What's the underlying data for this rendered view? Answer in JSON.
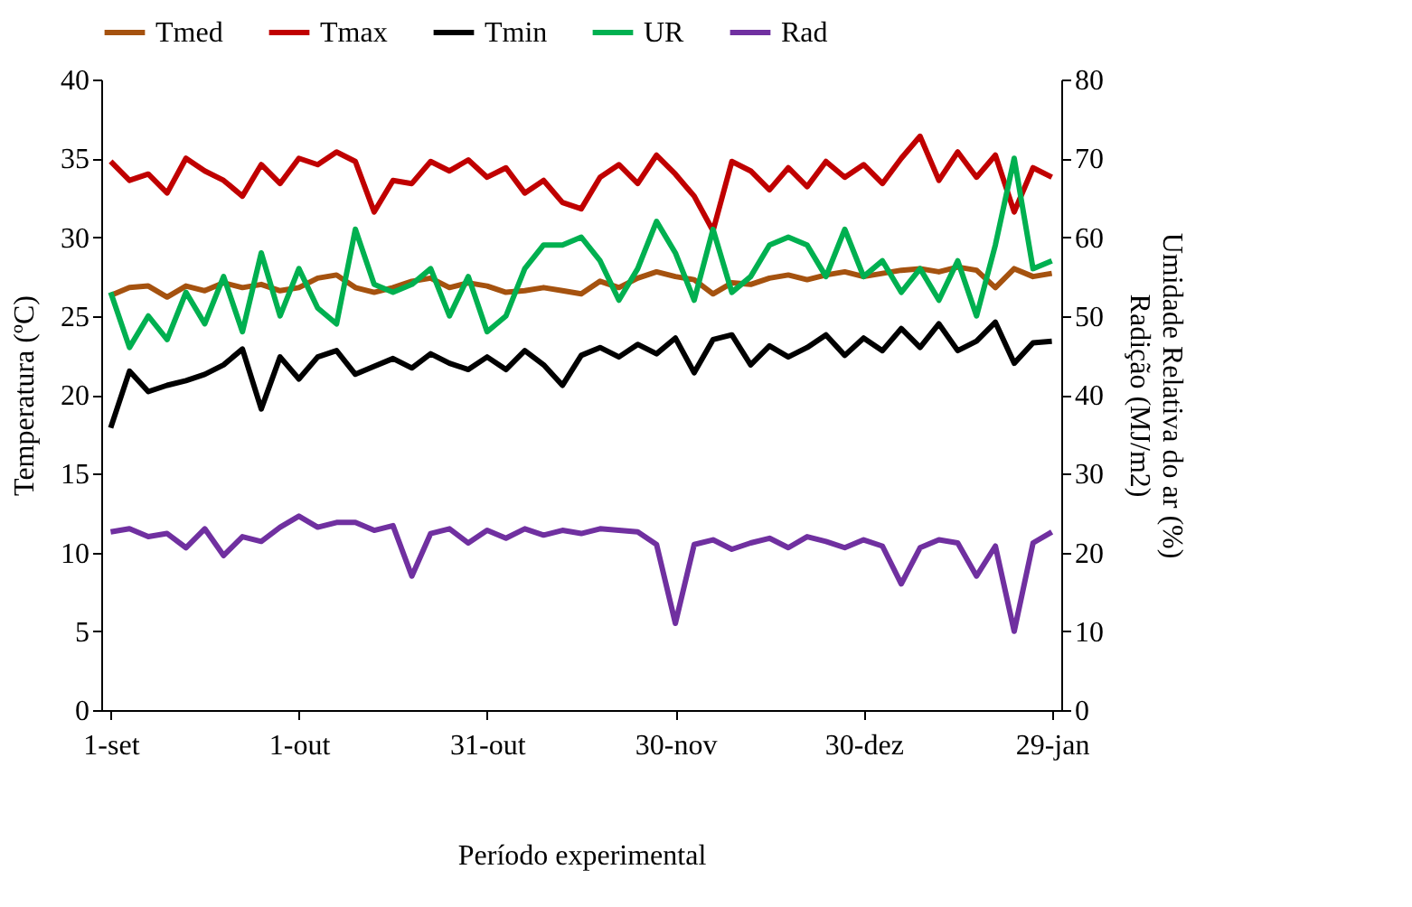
{
  "chart_data": {
    "type": "line",
    "xlabel": "Período experimental",
    "ylabel": "Temperatura (ºC)",
    "y2label": "Umidade Relativa do ar (%)\nRadição (MJ/m2)",
    "categories": [
      "1-set",
      null,
      null,
      null,
      null,
      null,
      null,
      null,
      null,
      null,
      "1-out",
      null,
      null,
      null,
      null,
      null,
      null,
      null,
      null,
      null,
      "31-out",
      null,
      null,
      null,
      null,
      null,
      null,
      null,
      null,
      null,
      "30-nov",
      null,
      null,
      null,
      null,
      null,
      null,
      null,
      null,
      null,
      "30-dez",
      null,
      null,
      null,
      null,
      null,
      null,
      null,
      null,
      null,
      "29-jan"
    ],
    "ylim": [
      0,
      40
    ],
    "yticks": [
      0,
      5,
      10,
      15,
      20,
      25,
      30,
      35,
      40
    ],
    "y2lim": [
      0,
      80
    ],
    "y2ticks": [
      0,
      10,
      20,
      30,
      40,
      50,
      60,
      70,
      80
    ],
    "grid": false,
    "legend": "top",
    "series": [
      {
        "name": "Tmed",
        "color": "#a5520f",
        "values": [
          26.3,
          26.8,
          26.9,
          26.2,
          26.9,
          26.6,
          27.1,
          26.8,
          27.0,
          26.6,
          26.8,
          27.4,
          27.6,
          26.8,
          26.5,
          26.8,
          27.2,
          27.4,
          26.8,
          27.1,
          26.9,
          26.5,
          26.6,
          26.8,
          26.6,
          26.4,
          27.2,
          26.8,
          27.4,
          27.8,
          27.5,
          27.3,
          26.4,
          27.1,
          27.0,
          27.4,
          27.6,
          27.3,
          27.6,
          27.8,
          27.5,
          27.7,
          27.9,
          28.0,
          27.8,
          28.1,
          27.9,
          26.8,
          28.0,
          27.5,
          27.7
        ]
      },
      {
        "name": "Tmax",
        "color": "#c00000",
        "values": [
          34.8,
          33.6,
          34.0,
          32.8,
          35.0,
          34.2,
          33.6,
          32.6,
          34.6,
          33.4,
          35.0,
          34.6,
          35.4,
          34.8,
          31.6,
          33.6,
          33.4,
          34.8,
          34.2,
          34.9,
          33.8,
          34.4,
          32.8,
          33.6,
          32.2,
          31.8,
          33.8,
          34.6,
          33.4,
          35.2,
          34.0,
          32.6,
          30.4,
          34.8,
          34.2,
          33.0,
          34.4,
          33.2,
          34.8,
          33.8,
          34.6,
          33.4,
          35.0,
          36.4,
          33.6,
          35.4,
          33.8,
          35.2,
          31.6,
          34.4,
          33.8
        ]
      },
      {
        "name": "Tmin",
        "color": "#000000",
        "values": [
          17.9,
          21.5,
          20.2,
          20.6,
          20.9,
          21.3,
          21.9,
          22.9,
          19.1,
          22.4,
          21.0,
          22.4,
          22.8,
          21.3,
          21.8,
          22.3,
          21.7,
          22.6,
          22.0,
          21.6,
          22.4,
          21.6,
          22.8,
          21.9,
          20.6,
          22.5,
          23.0,
          22.4,
          23.2,
          22.6,
          23.6,
          21.4,
          23.5,
          23.8,
          21.9,
          23.1,
          22.4,
          23.0,
          23.8,
          22.5,
          23.6,
          22.8,
          24.2,
          23.0,
          24.5,
          22.8,
          23.4,
          24.6,
          22.0,
          23.3,
          23.4
        ]
      },
      {
        "name": "UR",
        "color": "#00b050",
        "axis": "y2",
        "values": [
          53,
          46,
          50,
          47,
          53,
          49,
          55,
          48,
          58,
          50,
          56,
          51,
          49,
          61,
          54,
          53,
          54,
          56,
          50,
          55,
          48,
          50,
          56,
          59,
          59,
          60,
          57,
          52,
          56,
          62,
          58,
          52,
          61,
          53,
          55,
          59,
          60,
          59,
          55,
          61,
          55,
          57,
          53,
          56,
          52,
          57,
          50,
          59,
          70,
          56,
          57
        ]
      },
      {
        "name": "Rad",
        "color": "#7030a0",
        "axis": "y2",
        "values": [
          22.6,
          23.0,
          22.0,
          22.4,
          20.6,
          23.0,
          19.6,
          22.0,
          21.4,
          23.2,
          24.6,
          23.2,
          23.8,
          23.8,
          22.8,
          23.4,
          17.0,
          22.4,
          23.0,
          21.2,
          22.8,
          21.8,
          23.0,
          22.2,
          22.8,
          22.4,
          23.0,
          22.8,
          22.6,
          21.0,
          11.0,
          21.0,
          21.6,
          20.4,
          21.2,
          21.8,
          20.6,
          22.0,
          21.4,
          20.6,
          21.6,
          20.8,
          16.0,
          20.6,
          21.6,
          21.2,
          17.0,
          20.8,
          10.0,
          21.2,
          22.6
        ]
      }
    ]
  }
}
